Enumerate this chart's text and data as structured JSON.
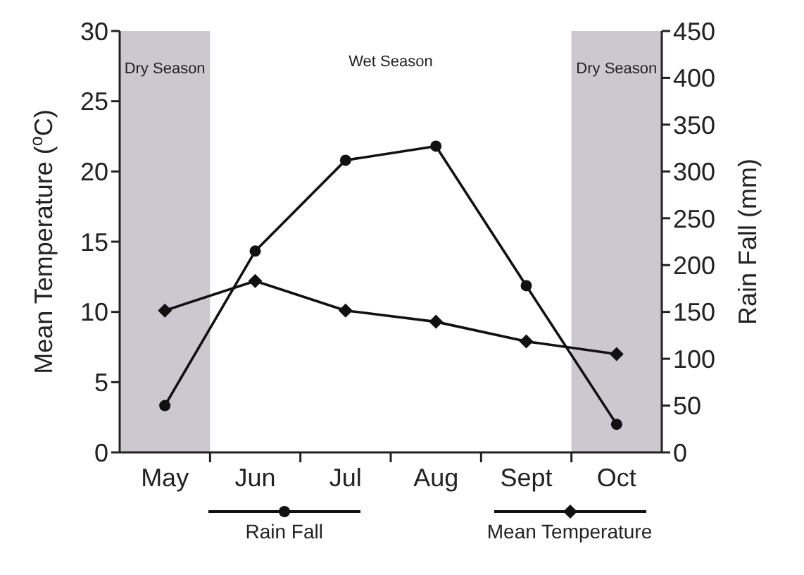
{
  "chart_data": {
    "type": "line",
    "categories": [
      "May",
      "Jun",
      "Jul",
      "Aug",
      "Sept",
      "Oct"
    ],
    "ylabel": "Mean Temperature ($^{o}$C)",
    "y2label": "Rain Fall (mm)",
    "ylim": [
      0,
      30
    ],
    "yticks": [
      0,
      5,
      10,
      15,
      20,
      25,
      30
    ],
    "y2lim": [
      0,
      450
    ],
    "y2ticks": [
      0,
      50,
      100,
      150,
      200,
      250,
      300,
      350,
      400,
      450
    ],
    "series": [
      {
        "name": "Rain Fall",
        "color": "#111111",
        "axis": "y2",
        "marker": "circle",
        "values": [
          50,
          215,
          312,
          327,
          178,
          30
        ]
      },
      {
        "name": "Mean Temperature",
        "color": "#111111",
        "axis": "y",
        "marker": "diamond",
        "values": [
          10.1,
          12.2,
          10.1,
          9.3,
          7.9,
          7.0
        ]
      }
    ],
    "bands": [
      {
        "axis": "x",
        "from": "May",
        "to": "May",
        "label": "Dry Season",
        "color": "#cdc8cf"
      },
      {
        "axis": "x",
        "from": "Oct",
        "to": "Oct",
        "label": "Dry Season",
        "color": "#cdc8cf"
      }
    ],
    "annotations": [
      "Wet Season"
    ],
    "legend": "bottom",
    "grid": false
  }
}
